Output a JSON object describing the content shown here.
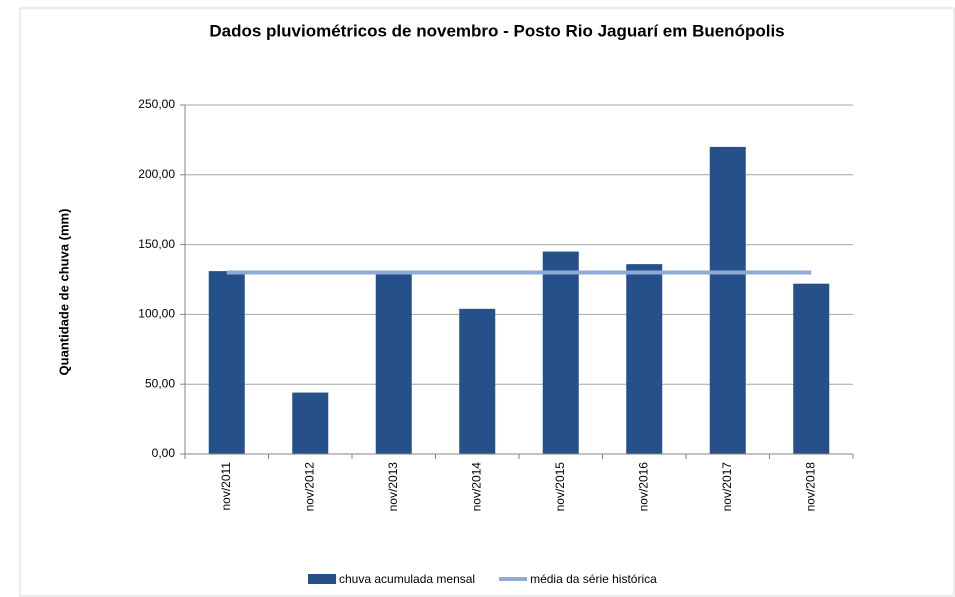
{
  "chart_data": {
    "type": "bar",
    "title": "Dados pluviométricos de novembro - Posto Rio Jaguarí em Buenópolis",
    "y_label": "Quantidade de chuva (mm)",
    "categories": [
      "nov/2011",
      "nov/2012",
      "nov/2013",
      "nov/2014",
      "nov/2015",
      "nov/2016",
      "nov/2017",
      "nov/2018"
    ],
    "series": [
      {
        "name": "chuva acumulada mensal",
        "type": "bar",
        "color": "#26508a",
        "values": [
          131,
          44,
          129,
          104,
          145,
          136,
          220,
          122
        ]
      },
      {
        "name": "média da série histórica",
        "type": "line",
        "color": "#8eaad6",
        "values": [
          130,
          130,
          130,
          130,
          130,
          130,
          130,
          130
        ]
      }
    ],
    "ylim": [
      0,
      250
    ],
    "yticks": [
      {
        "value": 0,
        "label": "0,00"
      },
      {
        "value": 50,
        "label": "50,00"
      },
      {
        "value": 100,
        "label": "100,00"
      },
      {
        "value": 150,
        "label": "150,00"
      },
      {
        "value": 200,
        "label": "200,00"
      },
      {
        "value": 250,
        "label": "250,00"
      }
    ],
    "grid": true,
    "legend": "bottom"
  }
}
